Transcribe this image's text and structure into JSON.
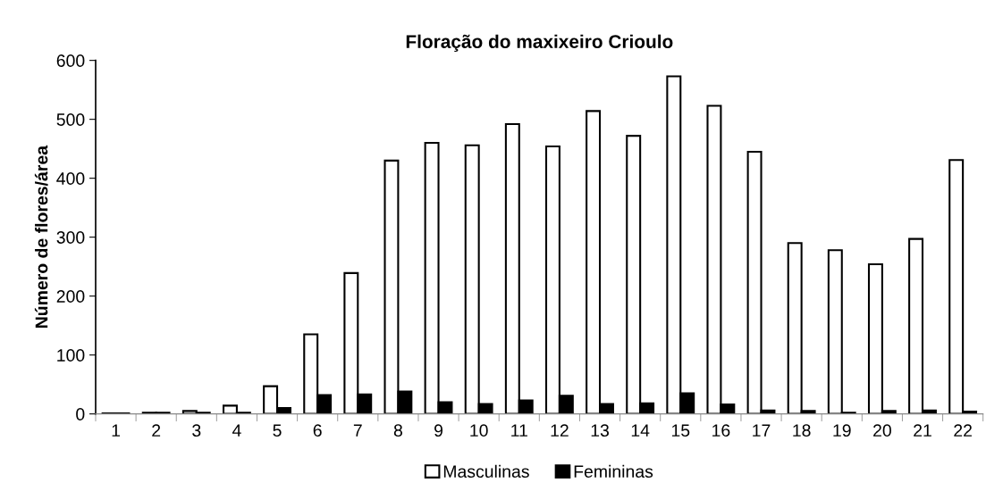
{
  "chart_data": {
    "type": "bar",
    "title": "Floração do maxixeiro Crioulo",
    "ylabel": "Número de flores/área",
    "categories": [
      "1",
      "2",
      "3",
      "4",
      "5",
      "6",
      "7",
      "8",
      "9",
      "10",
      "11",
      "12",
      "13",
      "14",
      "15",
      "16",
      "17",
      "18",
      "19",
      "20",
      "21",
      "22"
    ],
    "series": [
      {
        "name": "Masculinas",
        "color": "#ffffff",
        "values": [
          1,
          2,
          5,
          14,
          47,
          135,
          239,
          430,
          460,
          456,
          492,
          454,
          514,
          472,
          573,
          523,
          445,
          290,
          278,
          254,
          297,
          431
        ]
      },
      {
        "name": "Femininas",
        "color": "#000000",
        "values": [
          1,
          2,
          2,
          2,
          10,
          32,
          33,
          38,
          20,
          17,
          23,
          31,
          17,
          18,
          35,
          16,
          6,
          5,
          2,
          5,
          6,
          4
        ]
      }
    ],
    "ylim": [
      0,
      600
    ],
    "yticks": [
      0,
      100,
      200,
      300,
      400,
      500,
      600
    ],
    "grid": false,
    "legend": "bottom"
  }
}
